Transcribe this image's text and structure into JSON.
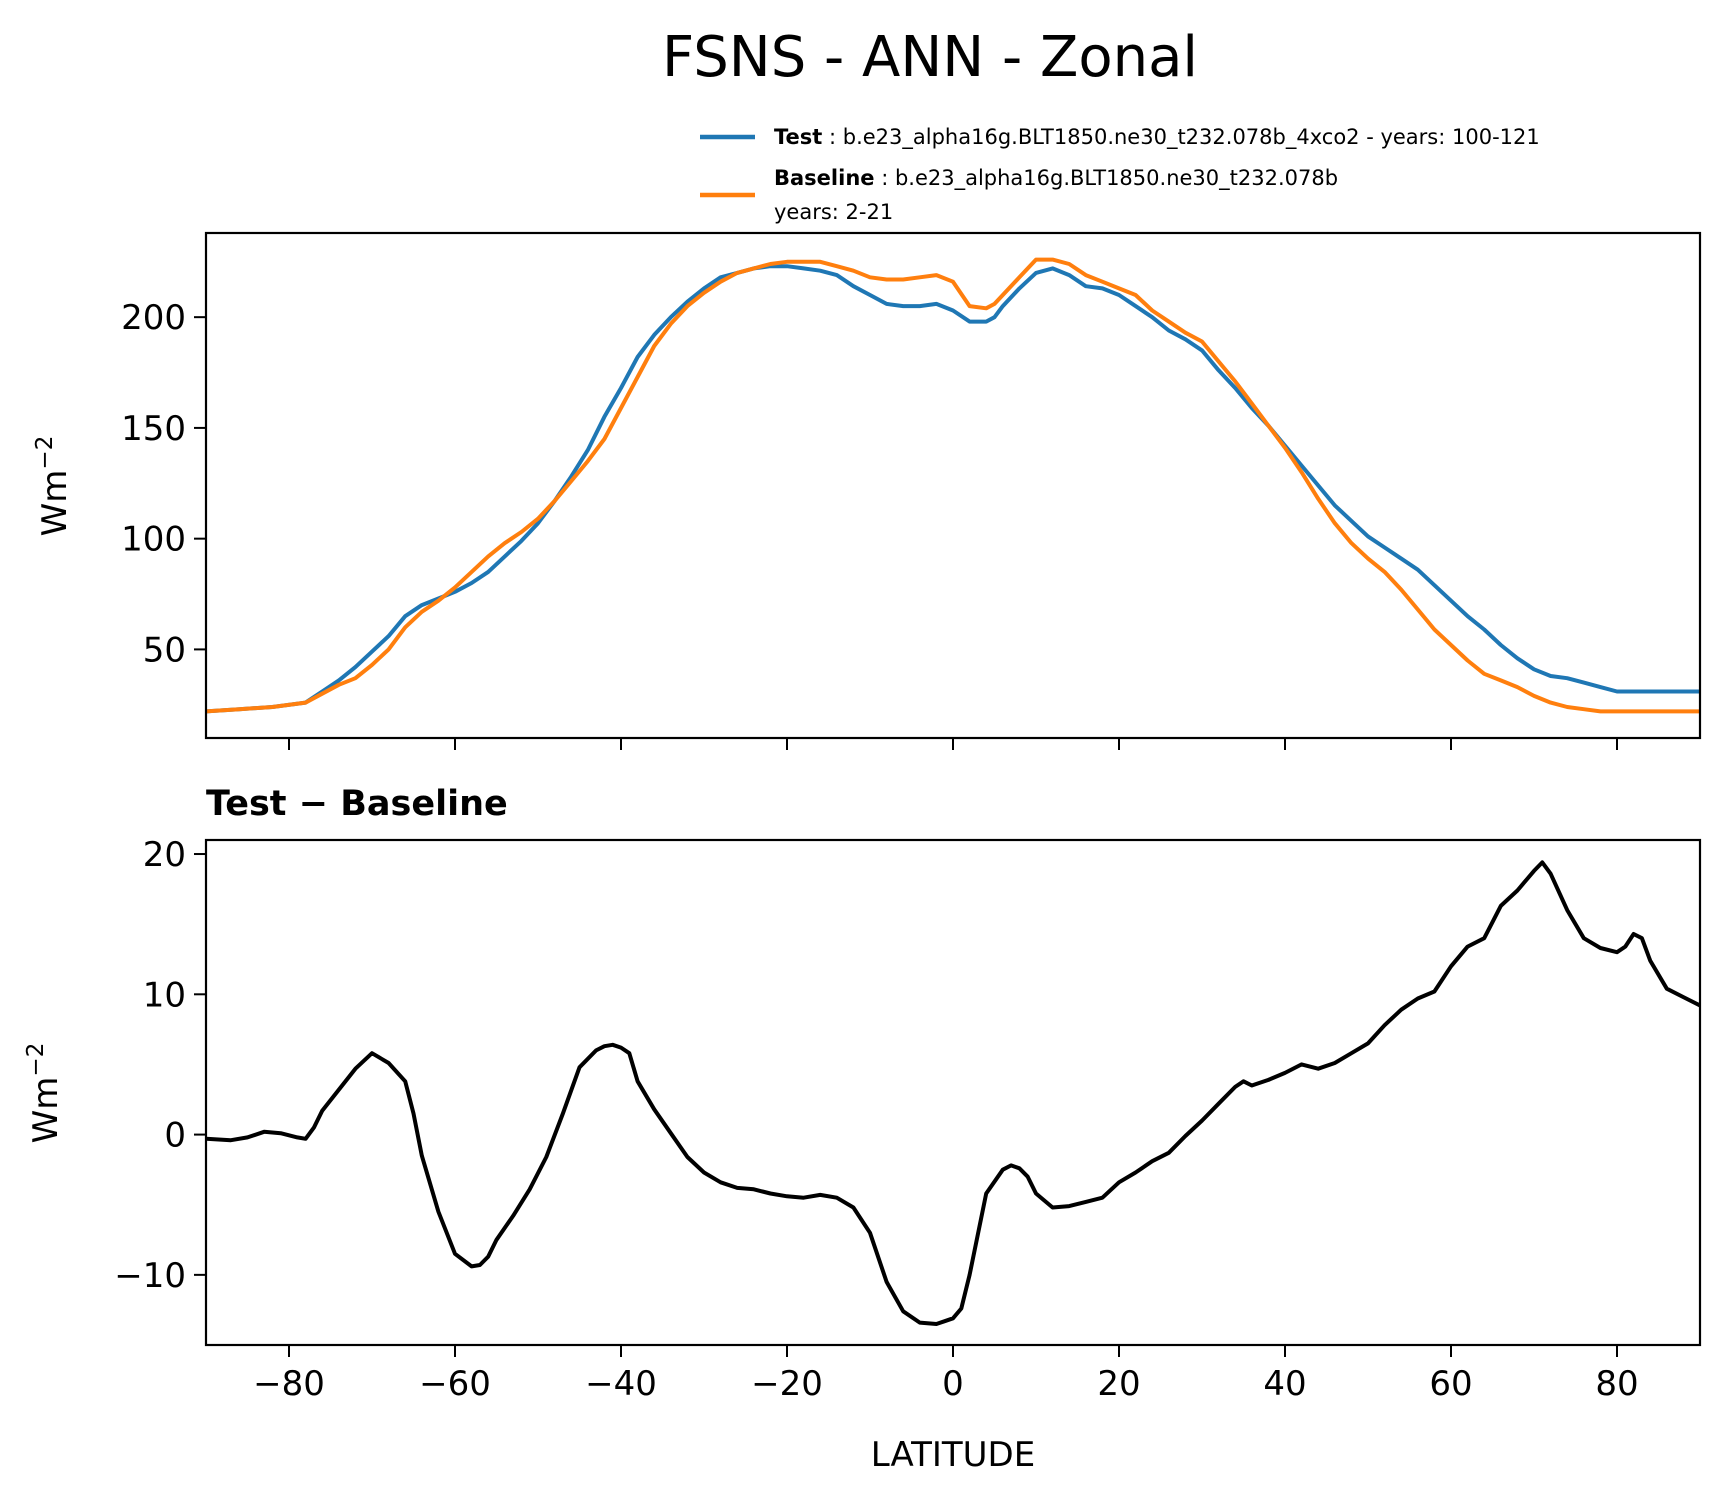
{
  "title": "FSNS - ANN - Zonal",
  "legend": [
    {
      "name_bold": "Test",
      "text": " : b.e23_alpha16g.BLT1850.ne30_t232.078b_4xco2 - years: 100-121",
      "text2": "",
      "color": "#1f77b4"
    },
    {
      "name_bold": "Baseline",
      "text": " : b.e23_alpha16g.BLT1850.ne30_t232.078b",
      "text2": "years: 2-21",
      "color": "#ff7f0e"
    }
  ],
  "chart_data": [
    {
      "type": "line",
      "xlabel": "",
      "ylabel": "Wm",
      "ylabel_sup": "−2",
      "xlim": [
        -90,
        90
      ],
      "ylim": [
        10,
        238
      ],
      "yticks": [
        50,
        100,
        150,
        200
      ],
      "xticks": [
        -80,
        -60,
        -40,
        -20,
        0,
        20,
        40,
        60,
        80
      ],
      "series": [
        {
          "name": "Test",
          "color": "#1f77b4",
          "x": [
            -90,
            -86,
            -82,
            -78,
            -76,
            -74,
            -72,
            -70,
            -68,
            -66,
            -64,
            -62,
            -60,
            -58,
            -56,
            -54,
            -52,
            -50,
            -48,
            -46,
            -44,
            -42,
            -40,
            -38,
            -36,
            -34,
            -32,
            -30,
            -28,
            -26,
            -24,
            -22,
            -20,
            -18,
            -16,
            -14,
            -12,
            -10,
            -8,
            -6,
            -4,
            -2,
            0,
            2,
            4,
            5,
            6,
            8,
            10,
            12,
            14,
            16,
            18,
            20,
            22,
            24,
            26,
            28,
            30,
            32,
            34,
            36,
            38,
            40,
            42,
            44,
            46,
            48,
            50,
            52,
            54,
            56,
            58,
            60,
            62,
            64,
            66,
            68,
            70,
            72,
            74,
            76,
            78,
            80,
            82,
            84,
            86,
            88,
            90
          ],
          "values": [
            22,
            23,
            24,
            26,
            31,
            36,
            42,
            49,
            56,
            65,
            70,
            73,
            76,
            80,
            85,
            92,
            99,
            107,
            117,
            128,
            140,
            155,
            168,
            182,
            192,
            200,
            207,
            213,
            218,
            220,
            222,
            223,
            223,
            222,
            221,
            219,
            214,
            210,
            206,
            205,
            205,
            206,
            203,
            198,
            198,
            200,
            205,
            213,
            220,
            222,
            219,
            214,
            213,
            210,
            205,
            200,
            194,
            190,
            185,
            176,
            168,
            159,
            151,
            142,
            133,
            124,
            115,
            108,
            101,
            96,
            91,
            86,
            79,
            72,
            65,
            59,
            52,
            46,
            41,
            38,
            37,
            35,
            33,
            31,
            31,
            31,
            31,
            31,
            31
          ]
        },
        {
          "name": "Baseline",
          "color": "#ff7f0e",
          "x": [
            -90,
            -86,
            -82,
            -78,
            -76,
            -74,
            -72,
            -70,
            -68,
            -66,
            -64,
            -62,
            -60,
            -58,
            -56,
            -54,
            -52,
            -50,
            -48,
            -46,
            -44,
            -42,
            -40,
            -38,
            -36,
            -34,
            -32,
            -30,
            -28,
            -26,
            -24,
            -22,
            -20,
            -18,
            -16,
            -14,
            -12,
            -10,
            -8,
            -6,
            -4,
            -2,
            0,
            2,
            4,
            5,
            6,
            8,
            10,
            12,
            14,
            16,
            18,
            20,
            22,
            24,
            26,
            28,
            30,
            32,
            34,
            36,
            38,
            40,
            42,
            44,
            46,
            48,
            50,
            52,
            54,
            56,
            58,
            60,
            62,
            64,
            66,
            68,
            70,
            72,
            74,
            76,
            78,
            80,
            82,
            84,
            86,
            88,
            90
          ],
          "values": [
            22,
            23,
            24,
            26,
            30,
            34,
            37,
            43,
            50,
            60,
            67,
            72,
            78,
            85,
            92,
            98,
            103,
            109,
            117,
            126,
            135,
            145,
            159,
            173,
            187,
            197,
            205,
            211,
            216,
            220,
            222,
            224,
            225,
            225,
            225,
            223,
            221,
            218,
            217,
            217,
            218,
            219,
            216,
            205,
            204,
            206,
            210,
            218,
            226,
            226,
            224,
            219,
            216,
            213,
            210,
            203,
            198,
            193,
            189,
            180,
            171,
            161,
            151,
            141,
            130,
            118,
            107,
            98,
            91,
            85,
            77,
            68,
            59,
            52,
            45,
            39,
            36,
            33,
            29,
            26,
            24,
            23,
            22,
            22,
            22,
            22,
            22,
            22,
            22
          ]
        }
      ]
    },
    {
      "type": "line",
      "title": "Test − Baseline",
      "xlabel": "LATITUDE",
      "ylabel": "Wm",
      "ylabel_sup": "−2",
      "xlim": [
        -90,
        90
      ],
      "ylim": [
        -15,
        21
      ],
      "yticks": [
        -10,
        0,
        10,
        20
      ],
      "xticks": [
        -80,
        -60,
        -40,
        -20,
        0,
        20,
        40,
        60,
        80
      ],
      "series": [
        {
          "name": "",
          "color": "#000000",
          "x": [
            -90,
            -87,
            -85,
            -83,
            -81,
            -79,
            -78,
            -77,
            -76,
            -74,
            -72,
            -70,
            -68,
            -66,
            -65,
            -64,
            -62,
            -60,
            -58,
            -57,
            -56,
            -55,
            -53,
            -51,
            -49,
            -47,
            -45,
            -43,
            -42,
            -41,
            -40,
            -39,
            -38,
            -36,
            -34,
            -32,
            -30,
            -28,
            -26,
            -24,
            -22,
            -20,
            -18,
            -16,
            -14,
            -12,
            -10,
            -8,
            -6,
            -4,
            -2,
            -1,
            0,
            1,
            2,
            4,
            6,
            7,
            8,
            9,
            10,
            12,
            14,
            16,
            18,
            20,
            22,
            24,
            26,
            28,
            30,
            32,
            34,
            35,
            36,
            38,
            40,
            42,
            44,
            46,
            48,
            50,
            52,
            54,
            56,
            58,
            60,
            62,
            64,
            66,
            68,
            70,
            71,
            72,
            74,
            76,
            78,
            80,
            81,
            82,
            83,
            84,
            86,
            88,
            90
          ],
          "values": [
            -0.3,
            -0.4,
            -0.2,
            0.2,
            0.1,
            -0.2,
            -0.3,
            0.5,
            1.7,
            3.2,
            4.7,
            5.8,
            5.1,
            3.8,
            1.5,
            -1.5,
            -5.5,
            -8.5,
            -9.4,
            -9.3,
            -8.7,
            -7.5,
            -5.8,
            -3.9,
            -1.6,
            1.5,
            4.8,
            6.0,
            6.3,
            6.4,
            6.2,
            5.8,
            3.8,
            1.8,
            0.1,
            -1.6,
            -2.7,
            -3.4,
            -3.8,
            -3.9,
            -4.2,
            -4.4,
            -4.5,
            -4.3,
            -4.5,
            -5.2,
            -7.0,
            -10.5,
            -12.6,
            -13.4,
            -13.5,
            -13.3,
            -13.1,
            -12.4,
            -10.0,
            -4.2,
            -2.5,
            -2.2,
            -2.4,
            -3.0,
            -4.2,
            -5.2,
            -5.1,
            -4.8,
            -4.5,
            -3.4,
            -2.7,
            -1.9,
            -1.3,
            -0.1,
            1.0,
            2.2,
            3.4,
            3.8,
            3.5,
            3.9,
            4.4,
            5.0,
            4.7,
            5.1,
            5.8,
            6.5,
            7.8,
            8.9,
            9.7,
            10.2,
            12.0,
            13.4,
            14.0,
            16.3,
            17.4,
            18.8,
            19.4,
            18.6,
            16.0,
            14.0,
            13.3,
            13.0,
            13.4,
            14.3,
            14.0,
            12.4,
            10.4,
            9.8,
            9.2
          ]
        }
      ]
    }
  ]
}
